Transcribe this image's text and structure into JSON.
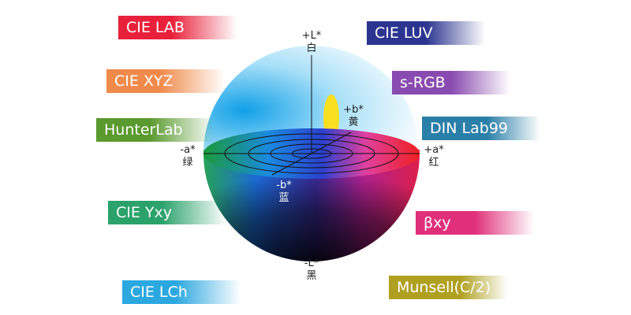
{
  "banners": [
    {
      "text": "CIE LAB"
    },
    {
      "text": "CIE XYZ"
    },
    {
      "text": "HunterLab"
    },
    {
      "text": "CIE Yxy"
    },
    {
      "text": "CIE LCh"
    },
    {
      "text": "CIE LUV"
    },
    {
      "text": "s-RGB"
    },
    {
      "text": "DIN Lab99"
    },
    {
      "text": "βxy"
    },
    {
      "text": "Munsell(C/2)"
    }
  ],
  "axis_labels": [
    {
      "sign": "+L*",
      "name": "白"
    },
    {
      "sign": "+b*",
      "name": "黄"
    },
    {
      "sign": "-a*",
      "name": "绿"
    },
    {
      "sign": "+a*",
      "name": "红"
    },
    {
      "sign": "-b*",
      "name": "蓝"
    },
    {
      "sign": "-L*",
      "name": "黑"
    }
  ]
}
